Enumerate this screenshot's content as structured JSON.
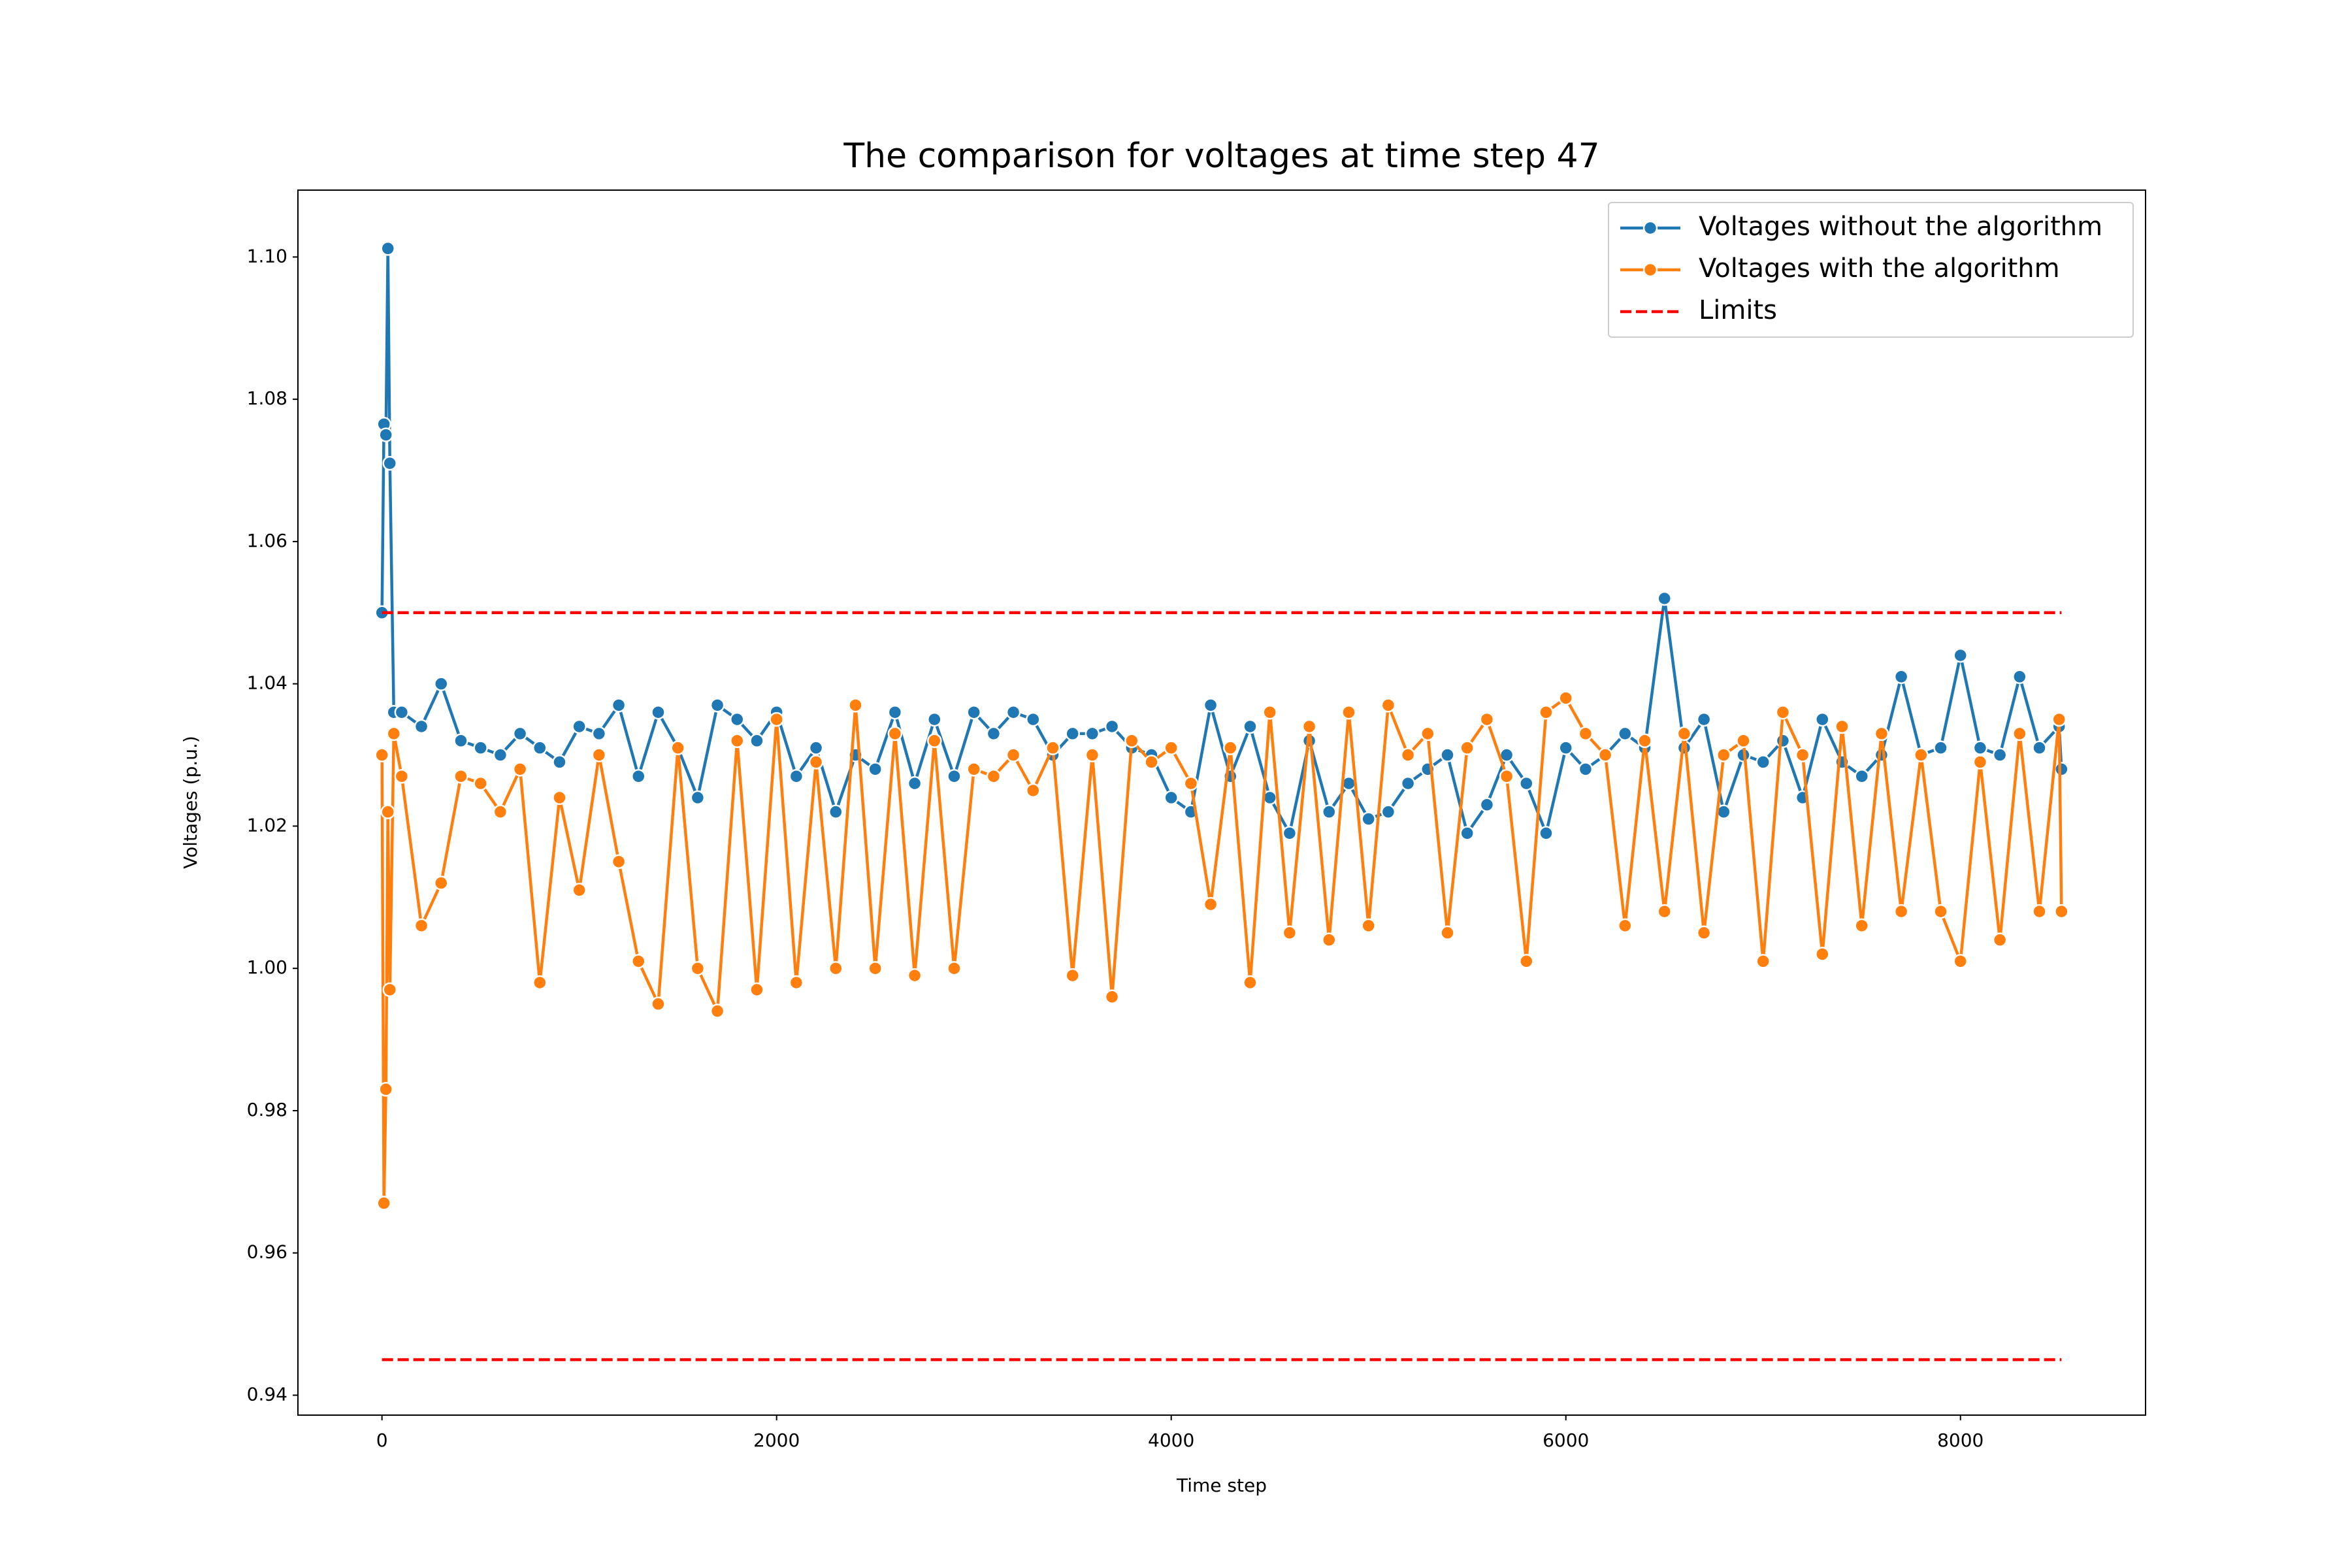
{
  "chart_data": {
    "type": "line",
    "title": "The comparison for voltages at time step 47",
    "x_label": "Time step",
    "y_label": "Voltages (p.u.)",
    "x": [
      0,
      10,
      20,
      30,
      40,
      60,
      100,
      200,
      300,
      400,
      500,
      600,
      700,
      800,
      900,
      1000,
      1100,
      1200,
      1300,
      1400,
      1500,
      1600,
      1700,
      1800,
      1900,
      2000,
      2100,
      2200,
      2300,
      2400,
      2500,
      2600,
      2700,
      2800,
      2900,
      3000,
      3100,
      3200,
      3300,
      3400,
      3500,
      3600,
      3700,
      3800,
      3900,
      4000,
      4100,
      4200,
      4300,
      4400,
      4500,
      4600,
      4700,
      4800,
      4900,
      5000,
      5100,
      5200,
      5300,
      5400,
      5500,
      5600,
      5700,
      5800,
      5900,
      6000,
      6100,
      6200,
      6300,
      6400,
      6500,
      6600,
      6700,
      6800,
      6900,
      7000,
      7100,
      7200,
      7300,
      7400,
      7500,
      7600,
      7700,
      7800,
      7900,
      8000,
      8100,
      8200,
      8300,
      8400,
      8500,
      8512
    ],
    "series": [
      {
        "name": "Voltages without the algorithm",
        "color": "#1f77b4",
        "marker": true,
        "values": [
          1.05,
          1.0765,
          1.075,
          1.1012,
          1.071,
          1.036,
          1.036,
          1.034,
          1.04,
          1.032,
          1.031,
          1.03,
          1.033,
          1.031,
          1.029,
          1.034,
          1.033,
          1.037,
          1.027,
          1.036,
          1.031,
          1.024,
          1.037,
          1.035,
          1.032,
          1.036,
          1.027,
          1.031,
          1.022,
          1.03,
          1.028,
          1.036,
          1.026,
          1.035,
          1.027,
          1.036,
          1.033,
          1.036,
          1.035,
          1.03,
          1.033,
          1.033,
          1.034,
          1.031,
          1.03,
          1.024,
          1.022,
          1.037,
          1.027,
          1.034,
          1.024,
          1.019,
          1.032,
          1.022,
          1.026,
          1.021,
          1.022,
          1.026,
          1.028,
          1.03,
          1.019,
          1.023,
          1.03,
          1.026,
          1.019,
          1.031,
          1.028,
          1.03,
          1.033,
          1.031,
          1.052,
          1.031,
          1.035,
          1.022,
          1.03,
          1.029,
          1.032,
          1.024,
          1.035,
          1.029,
          1.027,
          1.03,
          1.041,
          1.03,
          1.031,
          1.044,
          1.031,
          1.03,
          1.041,
          1.031,
          1.034,
          1.028
        ]
      },
      {
        "name": "Voltages with the algorithm",
        "color": "#ff7f0e",
        "marker": true,
        "values": [
          1.03,
          0.967,
          0.983,
          1.022,
          0.997,
          1.033,
          1.027,
          1.006,
          1.012,
          1.027,
          1.026,
          1.022,
          1.028,
          0.998,
          1.024,
          1.011,
          1.03,
          1.015,
          1.001,
          0.995,
          1.031,
          1.0,
          0.994,
          1.032,
          0.997,
          1.035,
          0.998,
          1.029,
          1.0,
          1.037,
          1.0,
          1.033,
          0.999,
          1.032,
          1.0,
          1.028,
          1.027,
          1.03,
          1.025,
          1.031,
          0.999,
          1.03,
          0.996,
          1.032,
          1.029,
          1.031,
          1.026,
          1.009,
          1.031,
          0.998,
          1.036,
          1.005,
          1.034,
          1.004,
          1.036,
          1.006,
          1.037,
          1.03,
          1.033,
          1.005,
          1.031,
          1.035,
          1.027,
          1.001,
          1.036,
          1.038,
          1.033,
          1.03,
          1.006,
          1.032,
          1.008,
          1.033,
          1.005,
          1.03,
          1.032,
          1.001,
          1.036,
          1.03,
          1.002,
          1.034,
          1.006,
          1.033,
          1.008,
          1.03,
          1.008,
          1.001,
          1.029,
          1.004,
          1.033,
          1.008,
          1.035,
          1.008
        ]
      },
      {
        "name": "Limits",
        "color": "#ff0000",
        "dashed": true,
        "hlines": [
          1.05,
          0.945
        ]
      }
    ],
    "xlim": [
      -426,
      8938
    ],
    "ylim": [
      0.9372,
      1.1094
    ],
    "xticks": [
      0,
      2000,
      4000,
      6000,
      8000
    ],
    "yticks": [
      0.94,
      0.96,
      0.98,
      {
        "value": 1.0,
        "label": "1.00"
      },
      1.02,
      1.04,
      1.06,
      1.08,
      {
        "value": 1.1,
        "label": "1.10"
      }
    ],
    "legend": "upper right"
  }
}
